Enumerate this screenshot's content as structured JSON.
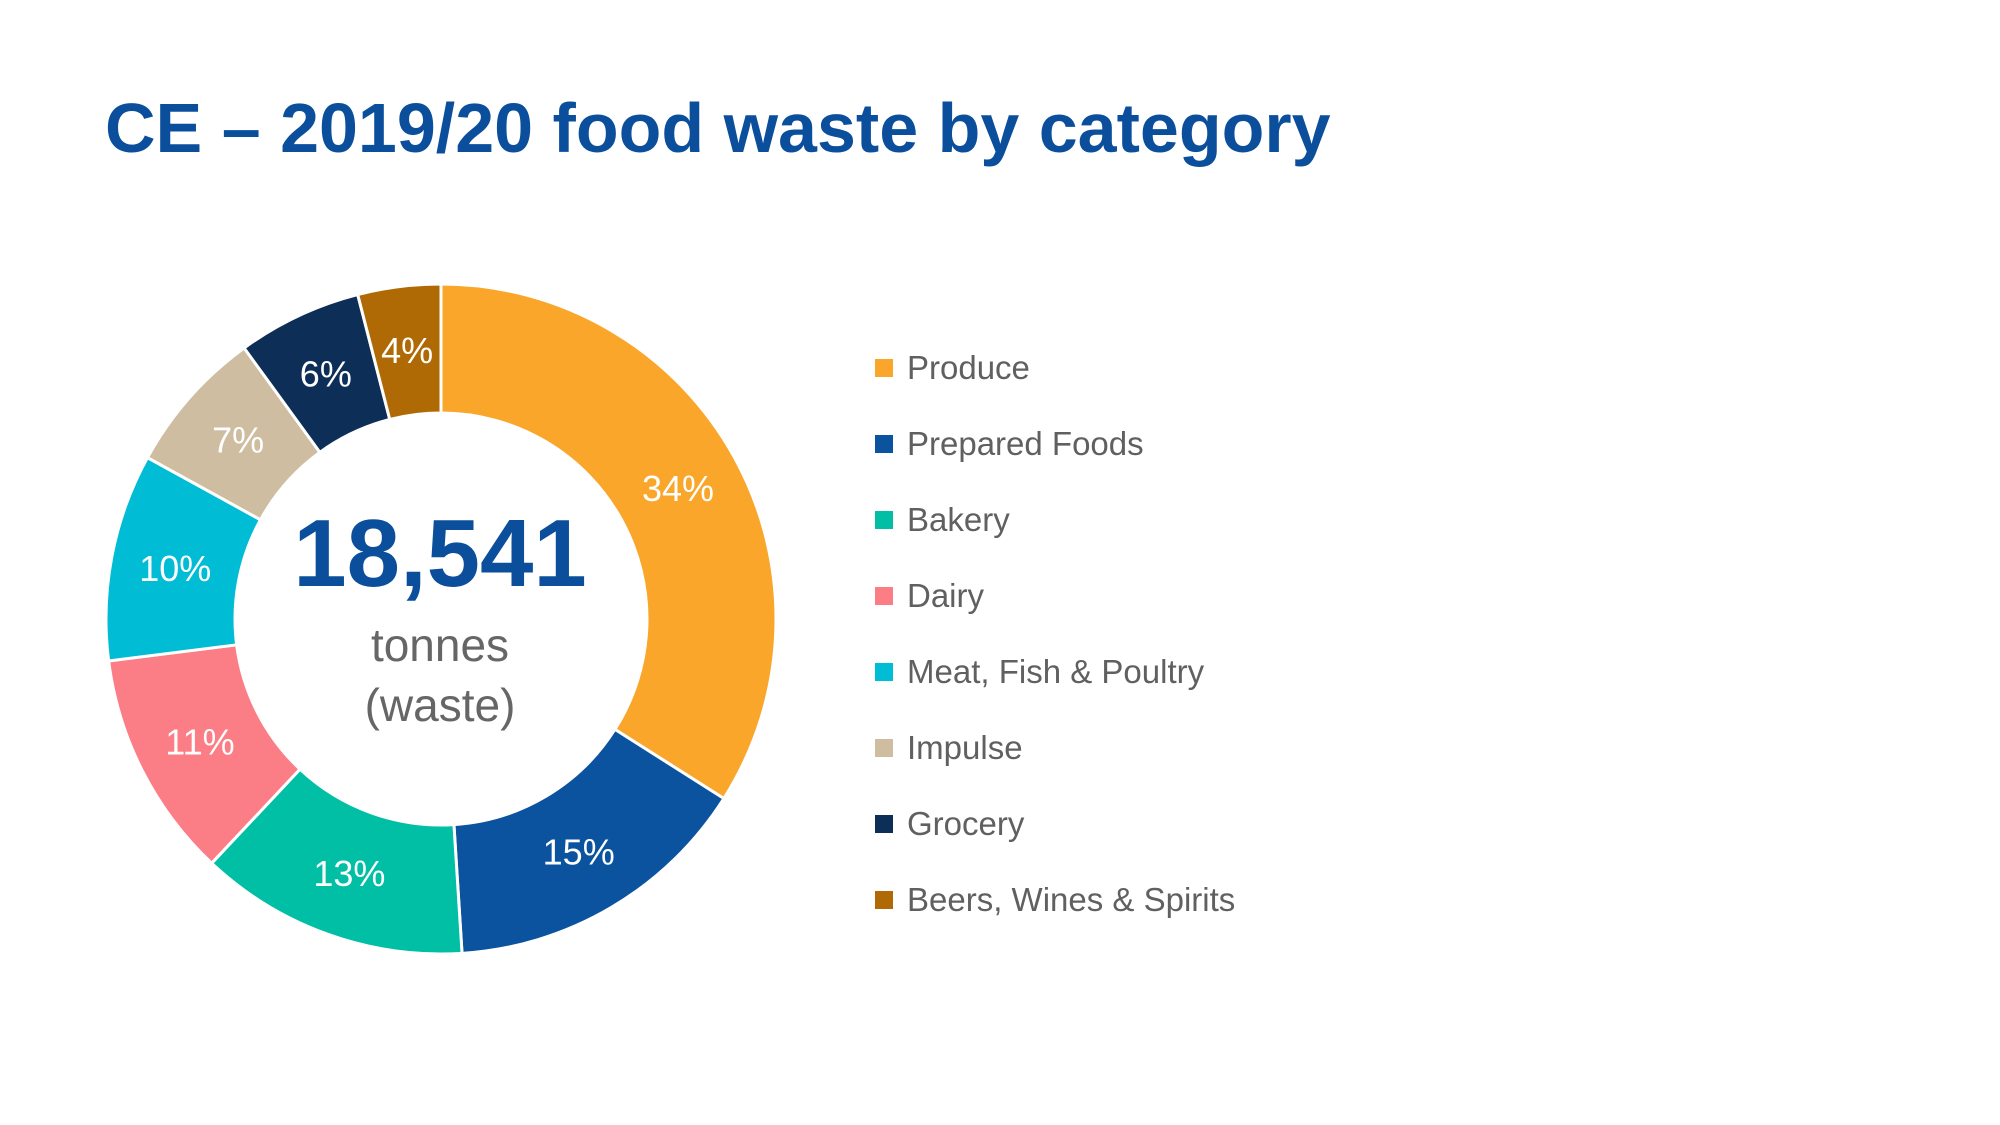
{
  "title": "CE – 2019/20 food waste by category",
  "center": {
    "total": "18,541",
    "unit_line1": "tonnes",
    "unit_line2": "(waste)"
  },
  "chart_data": {
    "type": "pie",
    "title": "CE – 2019/20 food waste by category",
    "donut": true,
    "legend_position": "right",
    "categories": [
      "Produce",
      "Prepared Foods",
      "Bakery",
      "Dairy",
      "Meat, Fish & Poultry",
      "Impulse",
      "Grocery",
      "Beers, Wines & Spirits"
    ],
    "values": [
      34,
      15,
      13,
      11,
      10,
      7,
      6,
      4
    ],
    "labels": [
      "34%",
      "15%",
      "13%",
      "11%",
      "10%",
      "7%",
      "6%",
      "4%"
    ],
    "colors": [
      "#f9a62b",
      "#0b539f",
      "#00bfa5",
      "#fb7d85",
      "#00bcd4",
      "#cebda0",
      "#0d2f57",
      "#b06a05"
    ]
  }
}
